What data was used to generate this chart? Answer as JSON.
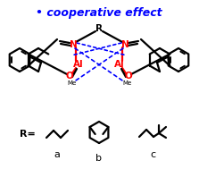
{
  "title_text": "• cooperative effect",
  "title_color": "blue",
  "title_fontsize": 9,
  "bg_color": "white",
  "figsize": [
    2.23,
    1.89
  ],
  "dpi": 100,
  "structure_color": "black",
  "red_color": "red",
  "blue_color": "blue",
  "linewidth": 1.6,
  "label_a": "a",
  "label_b": "b",
  "label_c": "c",
  "R_label": "R=",
  "R_center": "R"
}
